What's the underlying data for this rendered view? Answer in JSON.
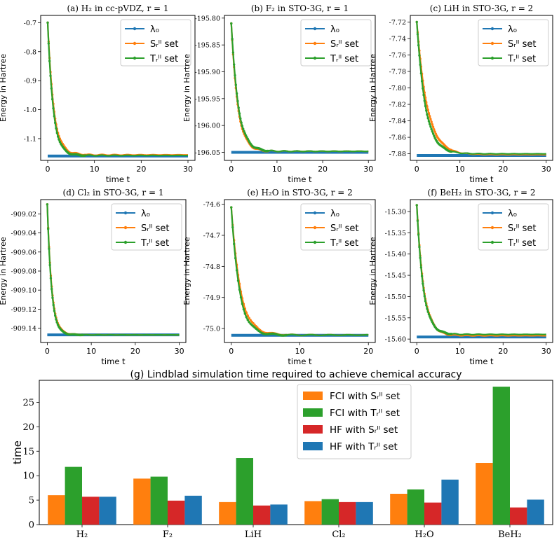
{
  "figure": {
    "colors": {
      "lambda": "#1f77b4",
      "s_set": "#ff7f0e",
      "t_set": "#2ca02c",
      "hf_s": "#d62728",
      "hf_t": "#1f77b4"
    }
  },
  "chart_data": [
    {
      "id": "a",
      "type": "line",
      "title": "(a) H₂ in cc-pVDZ, r = 1",
      "xlabel": "time t",
      "ylabel": "Energy in Hartree",
      "xlim": [
        -1.5,
        31.5
      ],
      "ylim": [
        -1.175,
        -0.675
      ],
      "xticks": [
        0,
        10,
        20,
        30
      ],
      "xtick_labels": [
        "0",
        "10",
        "20",
        "30"
      ],
      "yticks": [
        -0.7,
        -0.8,
        -0.9,
        -1.0,
        -1.1
      ],
      "ytick_labels": [
        "-0.7",
        "-0.8",
        "-0.9",
        "-1.0",
        "-1.1"
      ],
      "legend": [
        "λ₀",
        "Sᵣᴵᴵ set",
        "Tᵣᴵᴵ set"
      ],
      "lambda0": -1.16,
      "x_max": 30,
      "series": [
        {
          "name": "S_II^r set",
          "start": -0.7,
          "end": -1.156,
          "decay": 1.25,
          "wiggle": 0.004
        },
        {
          "name": "T_II^r set",
          "start": -0.7,
          "end": -1.158,
          "decay": 1.15,
          "wiggle": 0.003
        }
      ]
    },
    {
      "id": "b",
      "type": "line",
      "title": "(b) F₂ in STO-3G, r = 1",
      "xlabel": "time t",
      "ylabel": "Energy in Hartree",
      "xlim": [
        -1.5,
        31.5
      ],
      "ylim": [
        -196.065,
        -195.795
      ],
      "xticks": [
        0,
        10,
        20,
        30
      ],
      "xtick_labels": [
        "0",
        "10",
        "20",
        "30"
      ],
      "yticks": [
        -195.8,
        -195.85,
        -195.9,
        -195.95,
        -196.0,
        -196.05
      ],
      "ytick_labels": [
        "-195.80",
        "-195.85",
        "-195.90",
        "-195.95",
        "-196.00",
        "-196.05"
      ],
      "legend": [
        "λ₀",
        "Sᵣᴵᴵ set",
        "Tᵣᴵᴵ set"
      ],
      "lambda0": -196.05,
      "x_max": 30,
      "series": [
        {
          "name": "S_II^r set",
          "start": -195.81,
          "end": -196.048,
          "decay": 1.4,
          "wiggle": 0.002
        },
        {
          "name": "T_II^r set",
          "start": -195.81,
          "end": -196.048,
          "decay": 1.5,
          "wiggle": 0.002
        }
      ]
    },
    {
      "id": "c",
      "type": "line",
      "title": "(c) LiH in STO-3G, r = 2",
      "xlabel": "time t",
      "ylabel": "Energy in Hartree",
      "xlim": [
        -1.5,
        31.5
      ],
      "ylim": [
        -7.888,
        -7.712
      ],
      "xticks": [
        0,
        10,
        20,
        30
      ],
      "xtick_labels": [
        "0",
        "10",
        "20",
        "30"
      ],
      "yticks": [
        -7.72,
        -7.74,
        -7.76,
        -7.78,
        -7.8,
        -7.82,
        -7.84,
        -7.86,
        -7.88
      ],
      "ytick_labels": [
        "-7.72",
        "-7.74",
        "-7.76",
        "-7.78",
        "-7.80",
        "-7.82",
        "-7.84",
        "-7.86",
        "-7.88"
      ],
      "legend": [
        "λ₀",
        "Sᵣᴵᴵ set",
        "Tᵣᴵᴵ set"
      ],
      "lambda0": -7.882,
      "x_max": 30,
      "series": [
        {
          "name": "S_II^r set",
          "start": -7.72,
          "end": -7.881,
          "decay": 2.4,
          "wiggle": 0.001
        },
        {
          "name": "T_II^r set",
          "start": -7.72,
          "end": -7.88,
          "decay": 2.0,
          "wiggle": 0.001
        }
      ]
    },
    {
      "id": "d",
      "type": "line",
      "title": "(d) Cl₂ in STO-3G, r = 1",
      "xlabel": "time t",
      "ylabel": "Energy in Hartree",
      "xlim": [
        -1.5,
        31.5
      ],
      "ylim": [
        -909.155,
        -909.005
      ],
      "xticks": [
        0,
        10,
        20,
        30
      ],
      "xtick_labels": [
        "0",
        "10",
        "20",
        "30"
      ],
      "yticks": [
        -909.02,
        -909.04,
        -909.06,
        -909.08,
        -909.1,
        -909.12,
        -909.14
      ],
      "ytick_labels": [
        "-909.02",
        "-909.04",
        "-909.06",
        "-909.08",
        "-909.10",
        "-909.12",
        "-909.14"
      ],
      "legend": [
        "λ₀",
        "Sᵣᴵᴵ set",
        "Tᵣᴵᴵ set"
      ],
      "lambda0": -909.147,
      "x_max": 30,
      "series": [
        {
          "name": "S_II^r set",
          "start": -909.01,
          "end": -909.147,
          "decay": 1.0,
          "wiggle": 0.0005
        },
        {
          "name": "T_II^r set",
          "start": -909.01,
          "end": -909.147,
          "decay": 0.95,
          "wiggle": 0.0005
        }
      ]
    },
    {
      "id": "e",
      "type": "line",
      "title": "(e) H₂O in STO-3G, r = 2",
      "xlabel": "time t",
      "ylabel": "Energy in Hartree",
      "xlim": [
        -1,
        21
      ],
      "ylim": [
        -75.045,
        -74.585
      ],
      "xticks": [
        0,
        10,
        20
      ],
      "xtick_labels": [
        "0",
        "10",
        "20"
      ],
      "yticks": [
        -74.6,
        -74.7,
        -74.8,
        -74.9,
        -75.0
      ],
      "ytick_labels": [
        "-74.6",
        "-74.7",
        "-74.8",
        "-74.9",
        "-75.0"
      ],
      "legend": [
        "λ₀",
        "Sᵣᴵᴵ set",
        "Tᵣᴵᴵ set"
      ],
      "lambda0": -75.022,
      "x_max": 20,
      "series": [
        {
          "name": "S_II^r set",
          "start": -74.61,
          "end": -75.021,
          "decay": 1.3,
          "wiggle": 0.004
        },
        {
          "name": "T_II^r set",
          "start": -74.61,
          "end": -75.021,
          "decay": 1.15,
          "wiggle": 0.004
        }
      ]
    },
    {
      "id": "f",
      "type": "line",
      "title": "(f) BeH₂ in STO-3G, r = 2",
      "xlabel": "time t",
      "ylabel": "Energy in Hartree",
      "xlim": [
        -1.5,
        31.5
      ],
      "ylim": [
        -15.608,
        -15.272
      ],
      "xticks": [
        0,
        10,
        20,
        30
      ],
      "xtick_labels": [
        "0",
        "10",
        "20",
        "30"
      ],
      "yticks": [
        -15.3,
        -15.35,
        -15.4,
        -15.45,
        -15.5,
        -15.55,
        -15.6
      ],
      "ytick_labels": [
        "-15.30",
        "-15.35",
        "-15.40",
        "-15.45",
        "-15.50",
        "-15.55",
        "-15.60"
      ],
      "legend": [
        "λ₀",
        "Sᵣᴵᴵ set",
        "Tᵣᴵᴵ set"
      ],
      "lambda0": -15.595,
      "x_max": 30,
      "series": [
        {
          "name": "S_II^r set",
          "start": -15.285,
          "end": -15.592,
          "decay": 1.6,
          "wiggle": 0.002
        },
        {
          "name": "T_II^r set",
          "start": -15.285,
          "end": -15.589,
          "decay": 1.5,
          "wiggle": 0.002
        }
      ]
    },
    {
      "id": "g",
      "type": "bar",
      "title": "(g) Lindblad simulation time required to achieve chemical accuracy",
      "ylabel": "time",
      "categories": [
        "H₂",
        "F₂",
        "LiH",
        "Cl₂",
        "H₂O",
        "BeH₂"
      ],
      "ylim": [
        0,
        29.5
      ],
      "yticks": [
        0,
        5,
        10,
        15,
        20,
        25
      ],
      "ytick_labels": [
        "0",
        "5",
        "10",
        "15",
        "20",
        "25"
      ],
      "series": [
        {
          "name": "FCI with Sᵣᴵᴵ set",
          "values": [
            6.0,
            9.4,
            4.6,
            4.8,
            6.3,
            12.6
          ]
        },
        {
          "name": "FCI with Tᵣᴵᴵ set",
          "values": [
            11.8,
            9.8,
            13.6,
            5.2,
            7.2,
            28.2
          ]
        },
        {
          "name": "HF with Sᵣᴵᴵ set",
          "values": [
            5.7,
            4.9,
            3.9,
            4.6,
            4.5,
            3.5
          ]
        },
        {
          "name": "HF with Tᵣᴵᴵ set",
          "values": [
            5.7,
            5.9,
            4.1,
            4.6,
            9.2,
            5.1
          ]
        }
      ],
      "legend_position": "top-center"
    }
  ]
}
